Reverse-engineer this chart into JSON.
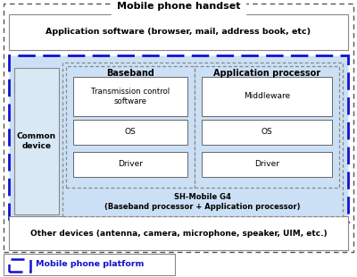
{
  "title": "Mobile phone handset",
  "app_software_label": "Application software (browser, mail, address book, etc)",
  "other_devices_label": "Other devices (antenna, camera, microphone, speaker, UIM, etc.)",
  "baseband_label": "Baseband",
  "app_processor_label": "Application processor",
  "common_device_label": "Common\ndevice",
  "sh_mobile_label": "SH-Mobile G4\n(Baseband processor + Application processor)",
  "baseband_boxes": [
    "Transmission control\nsoftware",
    "OS",
    "Driver"
  ],
  "app_processor_boxes": [
    "Middleware",
    "OS",
    "Driver"
  ],
  "legend_label": "Mobile phone platform",
  "bg_blue": "#cce0f5",
  "blue_dash_color": "#1111cc",
  "outer_dot_color": "#555555",
  "inner_dot_color": "#888888",
  "box_fill": "#ffffff",
  "common_fill": "#d8e8f5"
}
